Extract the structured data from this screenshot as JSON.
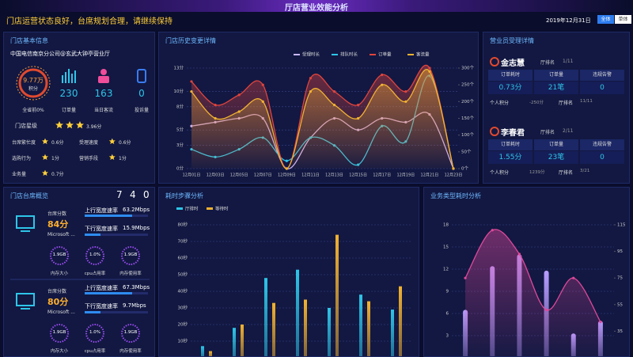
{
  "header": {
    "title": "厅店营业效能分析",
    "notice": "门店运营状态良好，台席规划合理，请继续保持",
    "date": "2019年12月31日",
    "buttons": [
      "全体",
      "单体"
    ]
  },
  "store": {
    "title": "门店基本信息",
    "name": "中国电信南京分公司@玄武大钟亭营业厅",
    "score": "9.77万",
    "score_label": "积分",
    "rank": "全省前0%",
    "stats": [
      {
        "value": "230",
        "label": "订单量"
      },
      {
        "value": "163",
        "label": "当日客流"
      },
      {
        "value": "0",
        "label": "投诉量"
      }
    ],
    "star_label": "门店星级",
    "star_score": "3.96分",
    "ratings": [
      {
        "label": "台席繁忙度",
        "score": "0.6分"
      },
      {
        "label": "受理速度",
        "score": "0.6分"
      },
      {
        "label": "选购行为",
        "score": "1分"
      },
      {
        "label": "营销手段",
        "score": "1分"
      },
      {
        "label": "业务量",
        "score": "0.7分"
      }
    ]
  },
  "history": {
    "type": "line",
    "title": "门店历史变更详情",
    "categories": [
      "12月01日",
      "12月03日",
      "12月05日",
      "12月07日",
      "12月09日",
      "12月11日",
      "12月13日",
      "12月15日",
      "12月17日",
      "12月19日",
      "12月21日",
      "12月23日"
    ],
    "series": [
      {
        "name": "受理时长",
        "color": "#c9b8ff",
        "values": [
          5.5,
          6,
          6.5,
          6.5,
          0,
          4,
          6.5,
          5,
          6.5,
          6,
          7,
          0
        ]
      },
      {
        "name": "排队时长",
        "color": "#2ec5e8",
        "values": [
          2.5,
          1.5,
          2.5,
          4,
          1,
          4,
          3,
          0.5,
          5.5,
          3.5,
          12,
          0
        ]
      },
      {
        "name": "订单量",
        "color": "#e0443c",
        "axis": "y2",
        "values": [
          260,
          190,
          220,
          250,
          0,
          270,
          230,
          190,
          280,
          230,
          300,
          0
        ]
      },
      {
        "name": "客流量",
        "color": "#f2b230",
        "axis": "y2",
        "values": [
          230,
          150,
          170,
          200,
          0,
          230,
          190,
          150,
          250,
          200,
          290,
          0
        ]
      }
    ],
    "ylim": [
      0,
      13
    ],
    "yticks": [
      {
        "value": 0,
        "label": "0分"
      },
      {
        "value": 3,
        "label": "3分"
      },
      {
        "value": 5,
        "label": "5分"
      },
      {
        "value": 8,
        "label": "8分"
      },
      {
        "value": 10,
        "label": "10分"
      },
      {
        "value": 13,
        "label": "13分"
      }
    ],
    "y2lim": [
      0,
      300
    ],
    "y2ticks": [
      {
        "value": 0,
        "label": "0个"
      },
      {
        "value": 50,
        "label": "50个"
      },
      {
        "value": 100,
        "label": "100个"
      },
      {
        "value": 150,
        "label": "150个"
      },
      {
        "value": 200,
        "label": "200个"
      },
      {
        "value": 250,
        "label": "250个"
      },
      {
        "value": 300,
        "label": "300个"
      }
    ],
    "grid": true
  },
  "sellers": {
    "title": "营业员受理详情",
    "people": [
      {
        "name": "金志慧",
        "rank_label": "厅排名",
        "rank": "1/11",
        "metrics": [
          {
            "label": "订单耗时",
            "value": "0.73分"
          },
          {
            "label": "订单量",
            "value": "21笔"
          },
          {
            "label": "违规告警",
            "value": "0"
          }
        ],
        "points_label": "个人积分",
        "points": "-250分",
        "rank2_label": "厅排名",
        "rank2": "11/11"
      },
      {
        "name": "李春君",
        "rank_label": "厅排名",
        "rank": "2/11",
        "metrics": [
          {
            "label": "订单耗时",
            "value": "1.55分"
          },
          {
            "label": "订单量",
            "value": "23笔"
          },
          {
            "label": "违规告警",
            "value": "0"
          }
        ],
        "points_label": "个人积分",
        "points": "1239分",
        "rank2_label": "厅排名",
        "rank2": "3/21"
      }
    ]
  },
  "desks": {
    "title": "门店台席概览",
    "counts": [
      "7",
      "4",
      "0"
    ],
    "items": [
      {
        "score_label": "台席分数",
        "score": "84分",
        "os": "Microsoft ...",
        "up_label": "上行宽度速率",
        "up": "63.2Mbps",
        "down_label": "下行宽度速率",
        "down": "15.9Mbps",
        "gauges": [
          {
            "value": "1.9GB",
            "label": "内存大小"
          },
          {
            "value": "1.0%",
            "label": "cpu占用率"
          },
          {
            "value": "1.9GB",
            "label": "内存使用率"
          }
        ]
      },
      {
        "score_label": "台席分数",
        "score": "80分",
        "os": "Microsoft ...",
        "up_label": "上行宽度速率",
        "up": "67.3Mbps",
        "down_label": "下行宽度速率",
        "down": "9.7Mbps",
        "gauges": [
          {
            "value": "1.9GB",
            "label": "内存大小"
          },
          {
            "value": "1.0%",
            "label": "cpu占用率"
          },
          {
            "value": "1.9GB",
            "label": "内存使用率"
          }
        ]
      }
    ]
  },
  "steps": {
    "type": "bar",
    "title": "耗时步骤分析",
    "categories": [
      null,
      null,
      null,
      null,
      null,
      null,
      null
    ],
    "series": [
      {
        "name": "厅排时",
        "color": "#2ec5e8",
        "values": [
          7,
          18,
          48,
          53,
          30,
          38,
          29
        ]
      },
      {
        "name": "等待时",
        "color": "#f2b230",
        "values": [
          4,
          20,
          33,
          35,
          74,
          34,
          43
        ]
      }
    ],
    "ylim": [
      0,
      80
    ],
    "yticks": [
      {
        "value": 10,
        "label": "10秒"
      },
      {
        "value": 20,
        "label": "20秒"
      },
      {
        "value": 30,
        "label": "30秒"
      },
      {
        "value": 40,
        "label": "40秒"
      },
      {
        "value": 50,
        "label": "50秒"
      },
      {
        "value": 60,
        "label": "60秒"
      },
      {
        "value": 70,
        "label": "70秒"
      },
      {
        "value": 80,
        "label": "80秒"
      }
    ],
    "grid": true
  },
  "types": {
    "type": "bar",
    "title": "业务类型耗时分析",
    "categories": [
      null,
      null,
      null,
      null,
      null,
      null
    ],
    "series": [
      {
        "color": "#b89cff",
        "values": [
          6.5,
          12.4,
          14,
          11.8,
          3.3,
          5
        ]
      },
      {
        "color": "#e0489a",
        "type": "line",
        "axis": "y2",
        "values": [
          75,
          111,
          93,
          51,
          75,
          42
        ]
      }
    ],
    "ylim": [
      0,
      18
    ],
    "yticks": [
      3,
      6,
      9,
      12,
      15,
      18
    ],
    "y2lim": [
      15,
      115
    ],
    "y2ticks": [
      35,
      55,
      75,
      95,
      115
    ],
    "grid": true
  }
}
